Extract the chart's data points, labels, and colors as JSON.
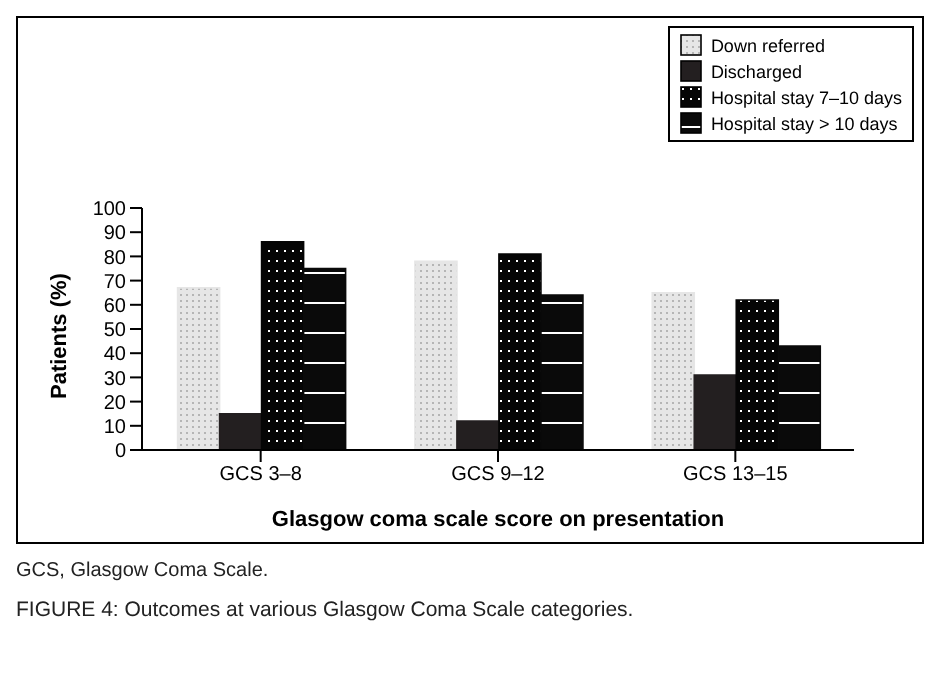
{
  "chart_data": {
    "type": "bar",
    "title": "FIGURE 4: Outcomes at various Glasgow Coma Scale categories.",
    "xlabel": "Glasgow coma scale score on presentation",
    "ylabel": "Patients (%)",
    "categories": [
      "GCS 3–8",
      "GCS 9–12",
      "GCS 13–15"
    ],
    "series": [
      {
        "name": "Down referred",
        "color": "#e6e6e6",
        "values": [
          67,
          78,
          65
        ]
      },
      {
        "name": "Discharged",
        "color": "#231f20",
        "values": [
          15,
          12,
          31
        ]
      },
      {
        "name": "Hospital stay 7–10 days",
        "color": "#050505",
        "values": [
          86,
          81,
          62
        ]
      },
      {
        "name": "Hospital stay > 10 days",
        "color": "#0a0a0a",
        "values": [
          75,
          64,
          43
        ]
      }
    ],
    "ylim": [
      0,
      100
    ],
    "yticks": [
      0,
      10,
      20,
      30,
      40,
      50,
      60,
      70,
      80,
      90,
      100
    ],
    "grid": false,
    "legend": "top right",
    "annotations": [
      "GCS, Glasgow Coma Scale."
    ]
  }
}
